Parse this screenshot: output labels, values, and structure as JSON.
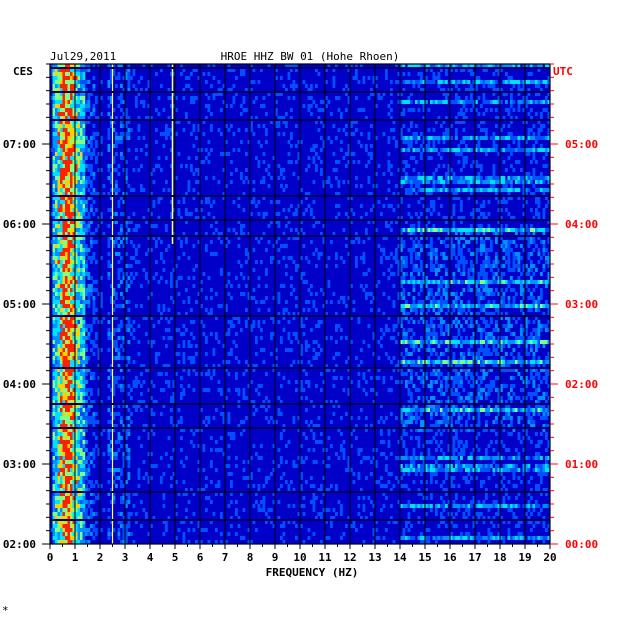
{
  "chart_data": {
    "type": "heatmap",
    "title": "HROE HHZ BW 01 (Hohe Rhoen)",
    "date": "Jul29,2011",
    "left_zone": "CES",
    "right_zone": "UTC",
    "xlabel": "FREQUENCY (HZ)",
    "xlim": [
      0,
      20
    ],
    "x_ticks": [
      "0",
      "1",
      "2",
      "3",
      "4",
      "5",
      "6",
      "7",
      "8",
      "9",
      "10",
      "11",
      "12",
      "13",
      "14",
      "15",
      "16",
      "17",
      "18",
      "19",
      "20"
    ],
    "y_ticks_left": [
      "02:00",
      "03:00",
      "04:00",
      "05:00",
      "06:00",
      "07:00"
    ],
    "y_ticks_right": [
      "00:00",
      "01:00",
      "02:00",
      "03:00",
      "04:00",
      "05:00"
    ],
    "time_range_local": [
      "02:00",
      "07:50"
    ],
    "colors": {
      "background": "#0000c8",
      "low": "#0a1ea8",
      "mid": "#00c8ff",
      "high": "#ffff00",
      "peak": "#ff0000",
      "right_axis": "#ff0000",
      "left_axis": "#000000"
    },
    "features": [
      {
        "name": "microseism band",
        "freq_hz": [
          0.2,
          1.2
        ],
        "intensity": "high"
      },
      {
        "name": "line 2.5 Hz",
        "freq_hz": 2.5,
        "intensity": "medium"
      },
      {
        "name": "line 4.9 Hz (05:50-07:50)",
        "freq_hz": 4.9,
        "intensity": "medium"
      },
      {
        "name": "cultural noise band",
        "freq_hz": [
          14,
          20
        ],
        "intensity": "medium"
      }
    ]
  },
  "footer_mark": "*"
}
